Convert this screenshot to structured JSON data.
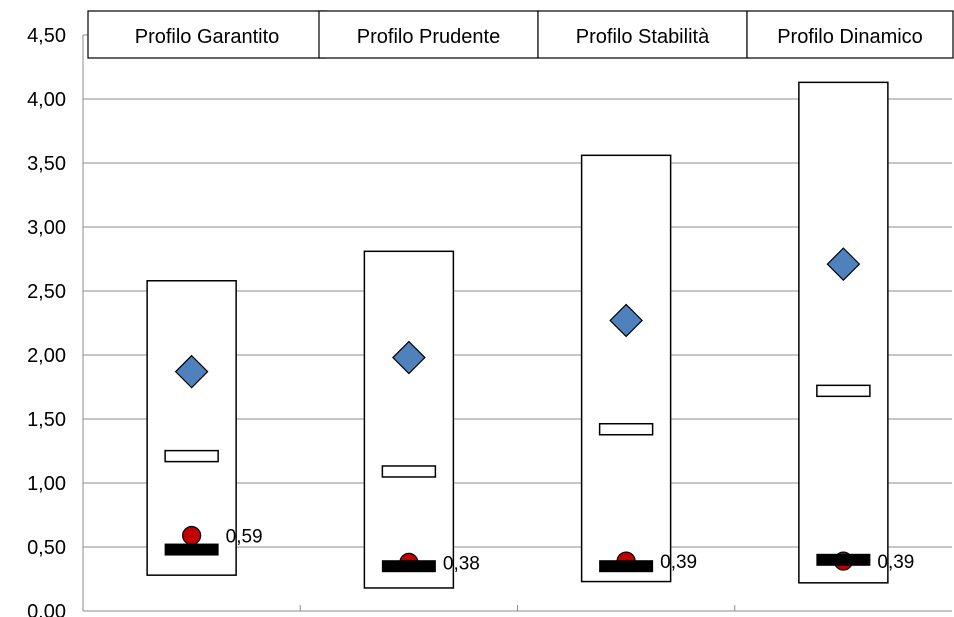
{
  "chart_data": {
    "type": "box",
    "categories": [
      "Profilo Garantito",
      "Profilo Prudente",
      "Profilo Stabilità",
      "Profilo Dinamico"
    ],
    "ylim": [
      0,
      4.5
    ],
    "yticks": [
      "0,00",
      "0,50",
      "1,00",
      "1,50",
      "2,00",
      "2,50",
      "3,00",
      "3,50",
      "4,00",
      "4,50"
    ],
    "grid": true,
    "range_box": {
      "low": [
        0.28,
        0.18,
        0.23,
        0.22
      ],
      "high": [
        2.58,
        2.81,
        3.56,
        4.13
      ]
    },
    "middle_marker": [
      1.21,
      1.09,
      1.42,
      1.72
    ],
    "diamond_marker": [
      1.87,
      1.98,
      2.27,
      2.71
    ],
    "thick_bar_marker": [
      0.48,
      0.35,
      0.35,
      0.4
    ],
    "circle_marker": [
      0.59,
      0.38,
      0.39,
      0.39
    ],
    "data_labels": [
      "0,59",
      "0,38",
      "0,39",
      "0,39"
    ],
    "colors": {
      "diamond": "#4f81bd",
      "circle": "#c00000",
      "bar": "#000000",
      "grid": "#8c8c8c"
    }
  }
}
